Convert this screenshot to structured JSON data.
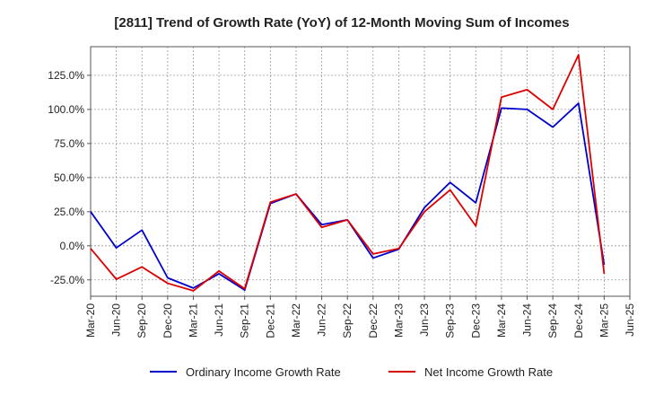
{
  "chart_data": {
    "type": "line",
    "title": "[2811]  Trend of Growth Rate (YoY) of 12-Month Moving Sum of Incomes",
    "xlabel": "",
    "ylabel": "",
    "x": [
      "Mar-20",
      "Jun-20",
      "Sep-20",
      "Dec-20",
      "Mar-21",
      "Jun-21",
      "Sep-21",
      "Dec-21",
      "Mar-22",
      "Jun-22",
      "Sep-22",
      "Dec-22",
      "Mar-23",
      "Jun-23",
      "Sep-23",
      "Dec-23",
      "Mar-24",
      "Jun-24",
      "Sep-24",
      "Dec-24",
      "Mar-25",
      "Jun-25"
    ],
    "y_ticks": [
      "125.0%",
      "100.0%",
      "75.0%",
      "50.0%",
      "25.0%",
      "0.0%",
      "-25.0%"
    ],
    "y_tick_values": [
      125,
      100,
      75,
      50,
      25,
      0,
      -25
    ],
    "ylim": [
      -37,
      146
    ],
    "grid": true,
    "legend_position": "bottom",
    "series": [
      {
        "name": "Ordinary Income Growth Rate",
        "color": "#0000cc",
        "values": [
          25,
          -1.5,
          11.5,
          -23.5,
          -31,
          -20.5,
          -32.5,
          31,
          38,
          15.5,
          19,
          -9,
          -2.5,
          28,
          46.5,
          31.5,
          101,
          100,
          87,
          104.5,
          -14,
          null
        ]
      },
      {
        "name": "Net Income Growth Rate",
        "color": "#dd0000",
        "values": [
          -2,
          -24.5,
          -15.5,
          -27.5,
          -33,
          -18.5,
          -31.5,
          32,
          38,
          13.5,
          19,
          -6,
          -2,
          25,
          41,
          14.5,
          109,
          114.5,
          100,
          140,
          -20.5,
          null
        ]
      }
    ]
  }
}
